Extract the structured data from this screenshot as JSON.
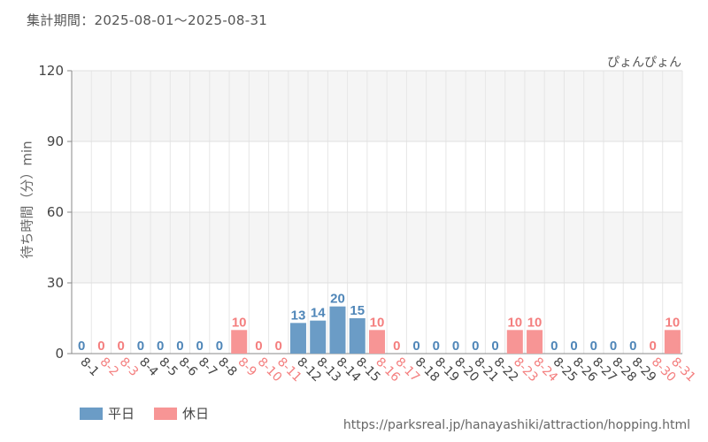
{
  "header": {
    "period": "集計期間：2025-08-01～2025-08-31",
    "attraction": "ぴょんぴょん"
  },
  "legend": {
    "weekday_label": "平日",
    "holiday_label": "休日"
  },
  "footer": {
    "source_url": "https://parksreal.jp/hanayashiki/attraction/hopping.html"
  },
  "colors": {
    "weekday": "#6b9cc6",
    "holiday": "#f79595",
    "weekday_text": "#4f86b8",
    "holiday_text": "#f47e7e"
  },
  "chart_data": {
    "type": "bar",
    "title": "",
    "ylabel": "待ち時間（分）min",
    "xlabel": "",
    "ylim": [
      0,
      120
    ],
    "yticks": [
      0,
      30,
      60,
      90,
      120
    ],
    "grid": true,
    "legend_position": "bottom-left",
    "categories": [
      "8-1",
      "8-2",
      "8-3",
      "8-4",
      "8-5",
      "8-6",
      "8-7",
      "8-8",
      "8-9",
      "8-10",
      "8-11",
      "8-12",
      "8-13",
      "8-14",
      "8-15",
      "8-16",
      "8-17",
      "8-18",
      "8-19",
      "8-20",
      "8-21",
      "8-22",
      "8-23",
      "8-24",
      "8-25",
      "8-26",
      "8-27",
      "8-28",
      "8-29",
      "8-30",
      "8-31"
    ],
    "values": [
      0,
      0,
      0,
      0,
      0,
      0,
      0,
      0,
      10,
      0,
      0,
      13,
      14,
      20,
      15,
      10,
      0,
      0,
      0,
      0,
      0,
      0,
      10,
      10,
      0,
      0,
      0,
      0,
      0,
      0,
      10
    ],
    "day_type": [
      "weekday",
      "holiday",
      "holiday",
      "weekday",
      "weekday",
      "weekday",
      "weekday",
      "weekday",
      "holiday",
      "holiday",
      "holiday",
      "weekday",
      "weekday",
      "weekday",
      "weekday",
      "holiday",
      "holiday",
      "weekday",
      "weekday",
      "weekday",
      "weekday",
      "weekday",
      "holiday",
      "holiday",
      "weekday",
      "weekday",
      "weekday",
      "weekday",
      "weekday",
      "holiday",
      "holiday"
    ],
    "series": [
      {
        "name": "平日"
      },
      {
        "name": "休日"
      }
    ]
  }
}
